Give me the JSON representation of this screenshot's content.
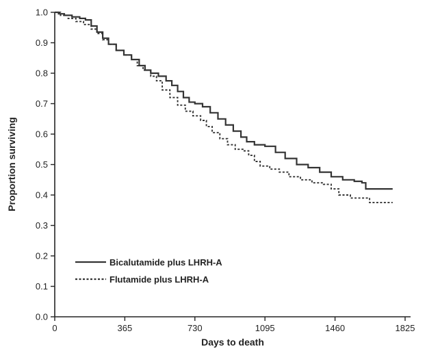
{
  "chart_data": {
    "type": "line",
    "xlabel": "Days to death",
    "ylabel": "Proportion surviving",
    "xlim": [
      0,
      1825
    ],
    "ylim": [
      0.0,
      1.0
    ],
    "x_ticks": [
      0,
      365,
      730,
      1095,
      1460,
      1825
    ],
    "y_ticks": [
      0.0,
      0.1,
      0.2,
      0.3,
      0.4,
      0.5,
      0.6,
      0.7,
      0.8,
      0.9,
      1.0
    ],
    "x_tick_labels": [
      "0",
      "365",
      "730",
      "1095",
      "1460",
      "1825"
    ],
    "y_tick_labels": [
      "0.0",
      "0.1",
      "0.2",
      "0.3",
      "0.4",
      "0.5",
      "0.6",
      "0.7",
      "0.8",
      "0.9",
      "1.0"
    ],
    "grid": false,
    "legend_position": "lower-left",
    "series": [
      {
        "name": "Bicalutamide plus LHRH-A",
        "style": "solid",
        "color": "#333333",
        "points": [
          [
            0,
            1.0
          ],
          [
            20,
            0.995
          ],
          [
            50,
            0.99
          ],
          [
            90,
            0.985
          ],
          [
            130,
            0.98
          ],
          [
            160,
            0.975
          ],
          [
            190,
            0.955
          ],
          [
            220,
            0.935
          ],
          [
            250,
            0.915
          ],
          [
            280,
            0.895
          ],
          [
            320,
            0.875
          ],
          [
            360,
            0.86
          ],
          [
            400,
            0.845
          ],
          [
            440,
            0.825
          ],
          [
            470,
            0.81
          ],
          [
            500,
            0.8
          ],
          [
            540,
            0.79
          ],
          [
            580,
            0.775
          ],
          [
            610,
            0.76
          ],
          [
            640,
            0.74
          ],
          [
            670,
            0.72
          ],
          [
            700,
            0.705
          ],
          [
            730,
            0.7
          ],
          [
            770,
            0.69
          ],
          [
            810,
            0.67
          ],
          [
            850,
            0.65
          ],
          [
            890,
            0.63
          ],
          [
            930,
            0.61
          ],
          [
            970,
            0.59
          ],
          [
            1000,
            0.575
          ],
          [
            1040,
            0.565
          ],
          [
            1095,
            0.56
          ],
          [
            1150,
            0.54
          ],
          [
            1200,
            0.52
          ],
          [
            1260,
            0.5
          ],
          [
            1320,
            0.49
          ],
          [
            1380,
            0.475
          ],
          [
            1440,
            0.46
          ],
          [
            1500,
            0.45
          ],
          [
            1560,
            0.445
          ],
          [
            1600,
            0.44
          ],
          [
            1620,
            0.42
          ],
          [
            1700,
            0.42
          ],
          [
            1760,
            0.42
          ]
        ]
      },
      {
        "name": "Flutamide plus LHRH-A",
        "style": "dashed",
        "color": "#333333",
        "points": [
          [
            0,
            1.0
          ],
          [
            30,
            0.99
          ],
          [
            70,
            0.98
          ],
          [
            110,
            0.97
          ],
          [
            150,
            0.96
          ],
          [
            190,
            0.945
          ],
          [
            220,
            0.93
          ],
          [
            250,
            0.91
          ],
          [
            280,
            0.895
          ],
          [
            320,
            0.875
          ],
          [
            360,
            0.86
          ],
          [
            400,
            0.845
          ],
          [
            430,
            0.825
          ],
          [
            460,
            0.81
          ],
          [
            500,
            0.79
          ],
          [
            530,
            0.775
          ],
          [
            560,
            0.745
          ],
          [
            600,
            0.72
          ],
          [
            640,
            0.695
          ],
          [
            680,
            0.675
          ],
          [
            720,
            0.66
          ],
          [
            760,
            0.645
          ],
          [
            790,
            0.625
          ],
          [
            820,
            0.605
          ],
          [
            860,
            0.585
          ],
          [
            900,
            0.565
          ],
          [
            940,
            0.55
          ],
          [
            980,
            0.545
          ],
          [
            1010,
            0.53
          ],
          [
            1040,
            0.51
          ],
          [
            1070,
            0.495
          ],
          [
            1120,
            0.485
          ],
          [
            1170,
            0.475
          ],
          [
            1220,
            0.46
          ],
          [
            1280,
            0.45
          ],
          [
            1340,
            0.44
          ],
          [
            1400,
            0.435
          ],
          [
            1440,
            0.42
          ],
          [
            1480,
            0.4
          ],
          [
            1540,
            0.39
          ],
          [
            1600,
            0.39
          ],
          [
            1640,
            0.375
          ],
          [
            1700,
            0.375
          ],
          [
            1760,
            0.375
          ]
        ]
      }
    ]
  }
}
